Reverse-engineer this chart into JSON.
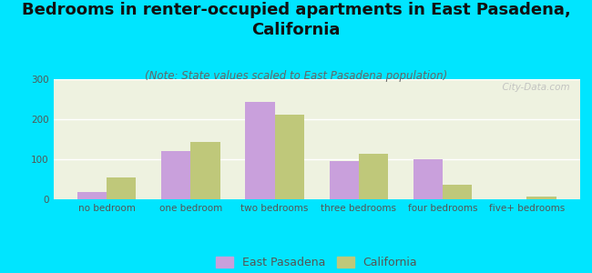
{
  "title": "Bedrooms in renter-occupied apartments in East Pasadena,\nCalifornia",
  "subtitle": "(Note: State values scaled to East Pasadena population)",
  "categories": [
    "no bedroom",
    "one bedroom",
    "two bedrooms",
    "three bedrooms",
    "four bedrooms",
    "five+ bedrooms"
  ],
  "east_pasadena": [
    18,
    120,
    243,
    95,
    100,
    0
  ],
  "california": [
    55,
    143,
    212,
    113,
    37,
    7
  ],
  "bar_color_ep": "#c9a0dc",
  "bar_color_ca": "#bfc87a",
  "background_outer": "#00e5ff",
  "background_inner": "#eef2e0",
  "ylim": [
    0,
    300
  ],
  "yticks": [
    0,
    100,
    200,
    300
  ],
  "watermark": "  City-Data.com",
  "legend_ep": "East Pasadena",
  "legend_ca": "California",
  "title_fontsize": 13,
  "subtitle_fontsize": 8.5,
  "tick_fontsize": 7.5,
  "legend_fontsize": 9
}
